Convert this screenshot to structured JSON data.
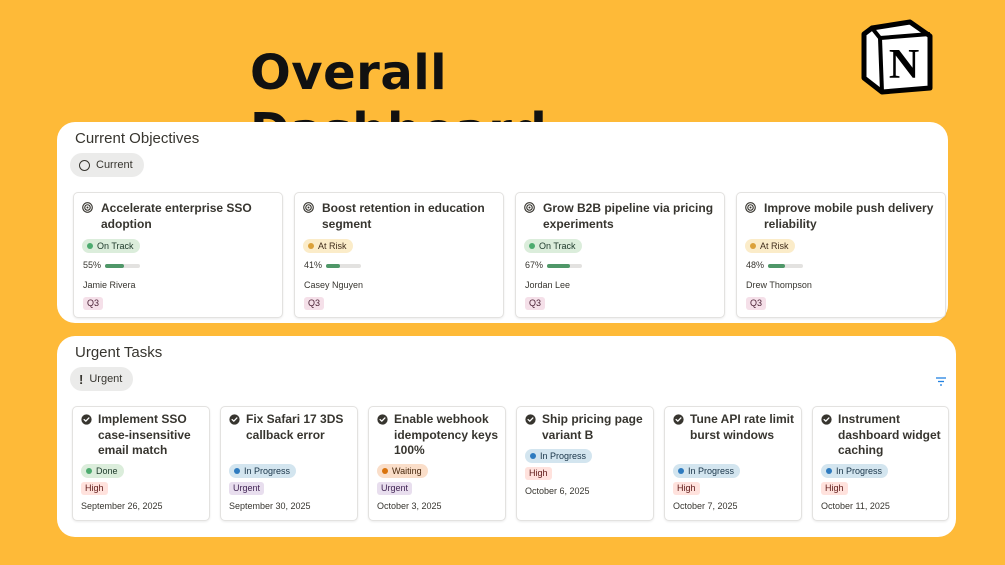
{
  "title": "Overall Dashboard",
  "logo_letter": "N",
  "objectives": {
    "heading": "Current Objectives",
    "view_chip": "Current",
    "cards": [
      {
        "title": "Accelerate enterprise SSO adoption",
        "status": "On Track",
        "status_color": "#4dab6f",
        "progress_text": "55%",
        "progress": 0.55,
        "owner": "Jamie Rivera",
        "quarter": "Q3"
      },
      {
        "title": "Boost retention in education segment",
        "status": "At Risk",
        "status_color": "#dba13a",
        "progress_text": "41%",
        "progress": 0.41,
        "owner": "Casey Nguyen",
        "quarter": "Q3"
      },
      {
        "title": "Grow B2B pipeline via pricing experiments",
        "status": "On Track",
        "status_color": "#4dab6f",
        "progress_text": "67%",
        "progress": 0.67,
        "owner": "Jordan Lee",
        "quarter": "Q3"
      },
      {
        "title": "Improve mobile push delivery reliability",
        "status": "At Risk",
        "status_color": "#dba13a",
        "progress_text": "48%",
        "progress": 0.48,
        "owner": "Drew Thompson",
        "quarter": "Q3"
      }
    ]
  },
  "urgent": {
    "heading": "Urgent Tasks",
    "view_chip": "Urgent",
    "cards": [
      {
        "title": "Implement SSO case-insensitive email match",
        "status": "Done",
        "priority": "High",
        "date": "September 26, 2025"
      },
      {
        "title": "Fix Safari 17 3DS callback error",
        "status": "In Progress",
        "priority": "Urgent",
        "date": "September 30, 2025"
      },
      {
        "title": "Enable webhook idempotency keys 100%",
        "status": "Waiting",
        "priority": "Urgent",
        "date": "October 3, 2025"
      },
      {
        "title": "Ship pricing page variant B",
        "status": "In Progress",
        "priority": "High",
        "date": "October 6, 2025"
      },
      {
        "title": "Tune API rate limit burst windows",
        "status": "In Progress",
        "priority": "High",
        "date": "October 7, 2025"
      },
      {
        "title": "Instrument dashboard widget caching",
        "status": "In Progress",
        "priority": "High",
        "date": "October 11, 2025"
      }
    ]
  },
  "icons": {
    "objective": "target-icon",
    "task": "check-circle-icon",
    "filter": "filter-icon",
    "logo": "notion-logo"
  },
  "colors": {
    "background": "#FEBA38",
    "panel": "#ffffff"
  }
}
